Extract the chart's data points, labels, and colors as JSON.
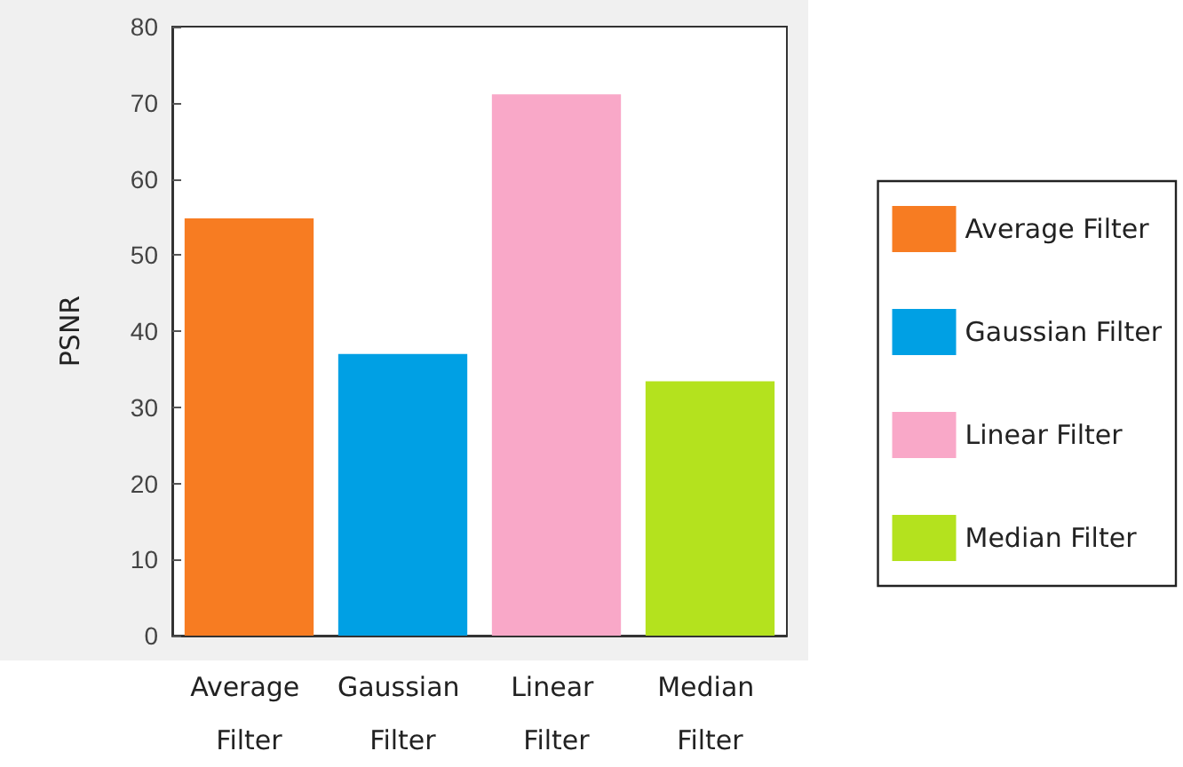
{
  "chart_data": {
    "type": "bar",
    "ylabel": "PSNR",
    "categories": [
      "Average Filter",
      "Gaussian Filter",
      "Linear Filter",
      "Median Filter"
    ],
    "series": [
      {
        "name": "Average Filter",
        "color": "#f77c22",
        "values": [
          54.8,
          null,
          null,
          null
        ]
      },
      {
        "name": "Gaussian Filter",
        "color": "#00a0e4",
        "values": [
          null,
          37.0,
          null,
          null
        ]
      },
      {
        "name": "Linear Filter",
        "color": "#f9a8c8",
        "values": [
          null,
          null,
          71.1,
          null
        ]
      },
      {
        "name": "Median Filter",
        "color": "#b4e21e",
        "values": [
          null,
          null,
          null,
          33.4
        ]
      }
    ],
    "ylim": [
      0,
      80
    ],
    "yticks": [
      0,
      10,
      20,
      30,
      40,
      50,
      60,
      70,
      80
    ],
    "grid": false,
    "legend": "right"
  }
}
